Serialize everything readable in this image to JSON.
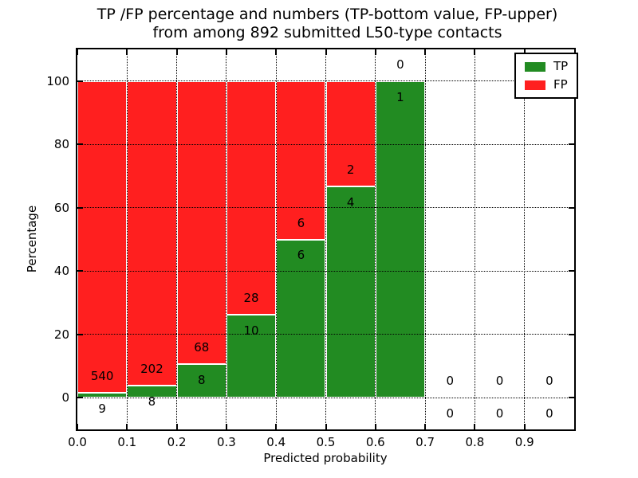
{
  "chart_data": {
    "type": "bar",
    "stacked": true,
    "title_line1": "TP /FP percentage and numbers (TP-bottom value, FP-upper)",
    "title_line2": "from among 892 submitted L50-type contacts",
    "total_submitted": 892,
    "xlabel": "Predicted probability",
    "ylabel": "Percentage",
    "xlim": [
      0.0,
      1.0
    ],
    "ylim": [
      -10,
      110
    ],
    "x_tick_values": [
      0.0,
      0.1,
      0.2,
      0.3,
      0.4,
      0.5,
      0.6,
      0.7,
      0.8,
      0.9
    ],
    "x_tick_labels": [
      "0.0",
      "0.1",
      "0.2",
      "0.3",
      "0.4",
      "0.5",
      "0.6",
      "0.7",
      "0.8",
      "0.9"
    ],
    "y_tick_values": [
      0,
      20,
      40,
      60,
      80,
      100
    ],
    "y_tick_labels": [
      "0",
      "20",
      "40",
      "60",
      "80",
      "100"
    ],
    "grid": true,
    "legend": {
      "position": "upper-right",
      "entries": [
        {
          "label": "TP",
          "color": "#228b22"
        },
        {
          "label": "FP",
          "color": "#ff1f1f"
        }
      ]
    },
    "colors": {
      "tp": "#228b22",
      "fp": "#ff1f1f",
      "grid": "#000000",
      "bar_edge": "#ffffff",
      "spine": "#000000"
    },
    "bins": [
      {
        "x_start": 0.0,
        "x_end": 0.1,
        "tp": 9,
        "fp": 540,
        "tp_pct": 1.64,
        "fp_pct": 98.36
      },
      {
        "x_start": 0.1,
        "x_end": 0.2,
        "tp": 8,
        "fp": 202,
        "tp_pct": 3.81,
        "fp_pct": 96.19
      },
      {
        "x_start": 0.2,
        "x_end": 0.3,
        "tp": 8,
        "fp": 68,
        "tp_pct": 10.53,
        "fp_pct": 89.47
      },
      {
        "x_start": 0.3,
        "x_end": 0.4,
        "tp": 10,
        "fp": 28,
        "tp_pct": 26.32,
        "fp_pct": 73.68
      },
      {
        "x_start": 0.4,
        "x_end": 0.5,
        "tp": 6,
        "fp": 6,
        "tp_pct": 50.0,
        "fp_pct": 50.0
      },
      {
        "x_start": 0.5,
        "x_end": 0.6,
        "tp": 4,
        "fp": 2,
        "tp_pct": 66.67,
        "fp_pct": 33.33
      },
      {
        "x_start": 0.6,
        "x_end": 0.7,
        "tp": 1,
        "fp": 0,
        "tp_pct": 100.0,
        "fp_pct": 0.0
      },
      {
        "x_start": 0.7,
        "x_end": 0.8,
        "tp": 0,
        "fp": 0,
        "tp_pct": null,
        "fp_pct": null
      },
      {
        "x_start": 0.8,
        "x_end": 0.9,
        "tp": 0,
        "fp": 0,
        "tp_pct": null,
        "fp_pct": null
      },
      {
        "x_start": 0.9,
        "x_end": 1.0,
        "tp": 0,
        "fp": 0,
        "tp_pct": null,
        "fp_pct": null
      }
    ]
  }
}
